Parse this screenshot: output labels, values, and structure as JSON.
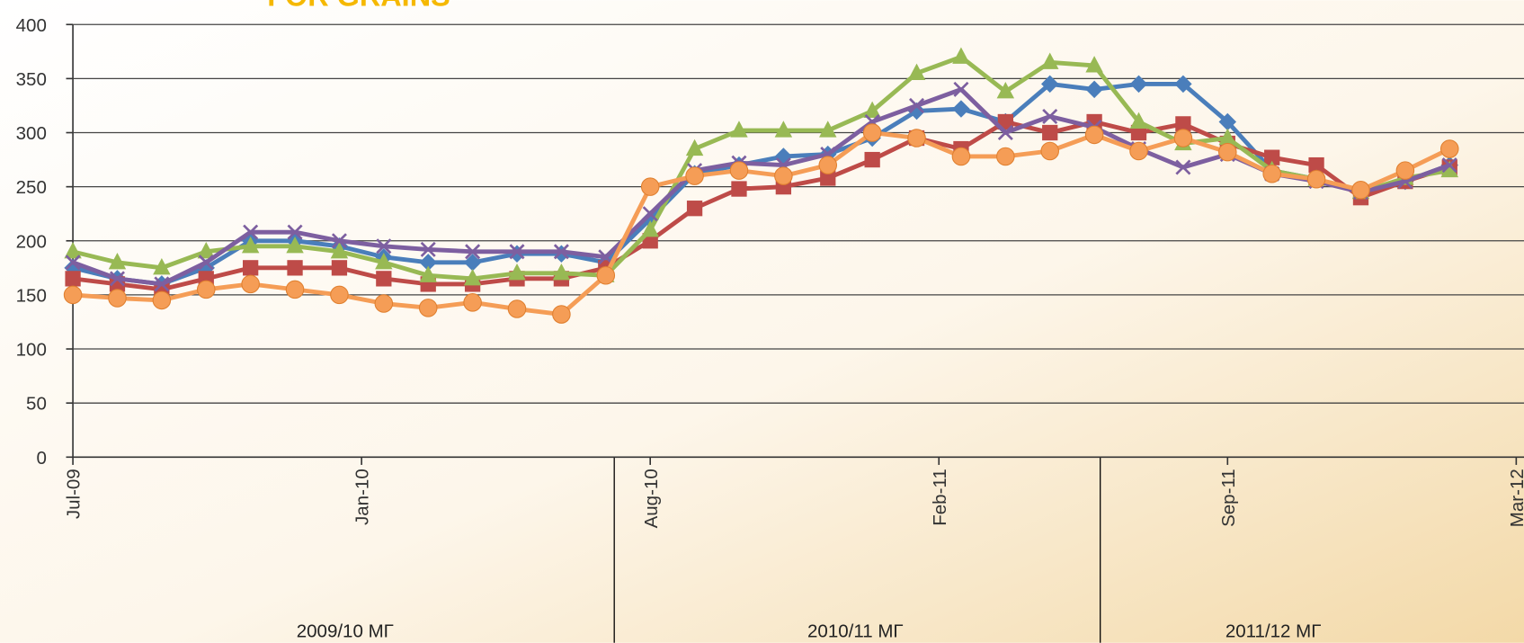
{
  "chart_data": {
    "type": "line",
    "title": "FOR GRAINS",
    "x": [
      0,
      1,
      2,
      3,
      4,
      5,
      6,
      7,
      8,
      9,
      10,
      11,
      12,
      13,
      14,
      15,
      16,
      17,
      18,
      19,
      20,
      21,
      22,
      23,
      24,
      25,
      26,
      27,
      28,
      29,
      30,
      31
    ],
    "xlim": [
      0,
      32.5
    ],
    "xticks": [
      {
        "value": 0,
        "label": "Jul-09"
      },
      {
        "value": 6.5,
        "label": "Jan-10"
      },
      {
        "value": 13,
        "label": "Aug-10"
      },
      {
        "value": 19.5,
        "label": "Feb-11"
      },
      {
        "value": 26,
        "label": "Sep-11"
      },
      {
        "value": 32.5,
        "label": "Mar-12"
      }
    ],
    "ylim": [
      0,
      400
    ],
    "yticks": [
      0,
      50,
      100,
      150,
      200,
      250,
      300,
      350,
      400
    ],
    "grid": true,
    "period_labels": [
      "2009/10 МГ",
      "2010/11 МГ",
      "2011/12 МГ"
    ],
    "series": [
      {
        "color": "#4a7ebb",
        "marker": "diamond",
        "values": [
          175,
          165,
          160,
          175,
          200,
          200,
          195,
          185,
          180,
          180,
          188,
          188,
          180,
          220,
          262,
          270,
          278,
          280,
          295,
          320,
          322,
          310,
          345,
          340,
          345,
          345,
          310,
          265,
          257,
          245,
          255,
          270
        ]
      },
      {
        "color": "#be4b48",
        "marker": "square",
        "values": [
          165,
          160,
          155,
          165,
          175,
          175,
          175,
          165,
          160,
          160,
          165,
          165,
          175,
          200,
          230,
          248,
          250,
          258,
          275,
          295,
          285,
          310,
          300,
          310,
          300,
          308,
          290,
          277,
          270,
          240,
          255,
          268
        ]
      },
      {
        "color": "#98b954",
        "marker": "triangle",
        "values": [
          190,
          180,
          175,
          190,
          195,
          195,
          190,
          180,
          168,
          165,
          170,
          170,
          168,
          210,
          285,
          302,
          302,
          302,
          320,
          355,
          370,
          338,
          365,
          362,
          310,
          290,
          295,
          265,
          257,
          245,
          258,
          265
        ]
      },
      {
        "color": "#7d5fa0",
        "marker": "x",
        "values": [
          180,
          165,
          160,
          180,
          208,
          208,
          200,
          195,
          192,
          190,
          190,
          190,
          185,
          225,
          265,
          272,
          270,
          280,
          310,
          325,
          340,
          300,
          315,
          305,
          285,
          268,
          280,
          262,
          255,
          245,
          255,
          270
        ]
      },
      {
        "color": "#f59d56",
        "marker": "circle",
        "values": [
          150,
          147,
          145,
          155,
          160,
          155,
          150,
          142,
          138,
          143,
          137,
          132,
          168,
          250,
          260,
          265,
          260,
          270,
          300,
          295,
          278,
          278,
          283,
          298,
          283,
          295,
          282,
          262,
          257,
          247,
          265,
          285
        ]
      }
    ]
  }
}
